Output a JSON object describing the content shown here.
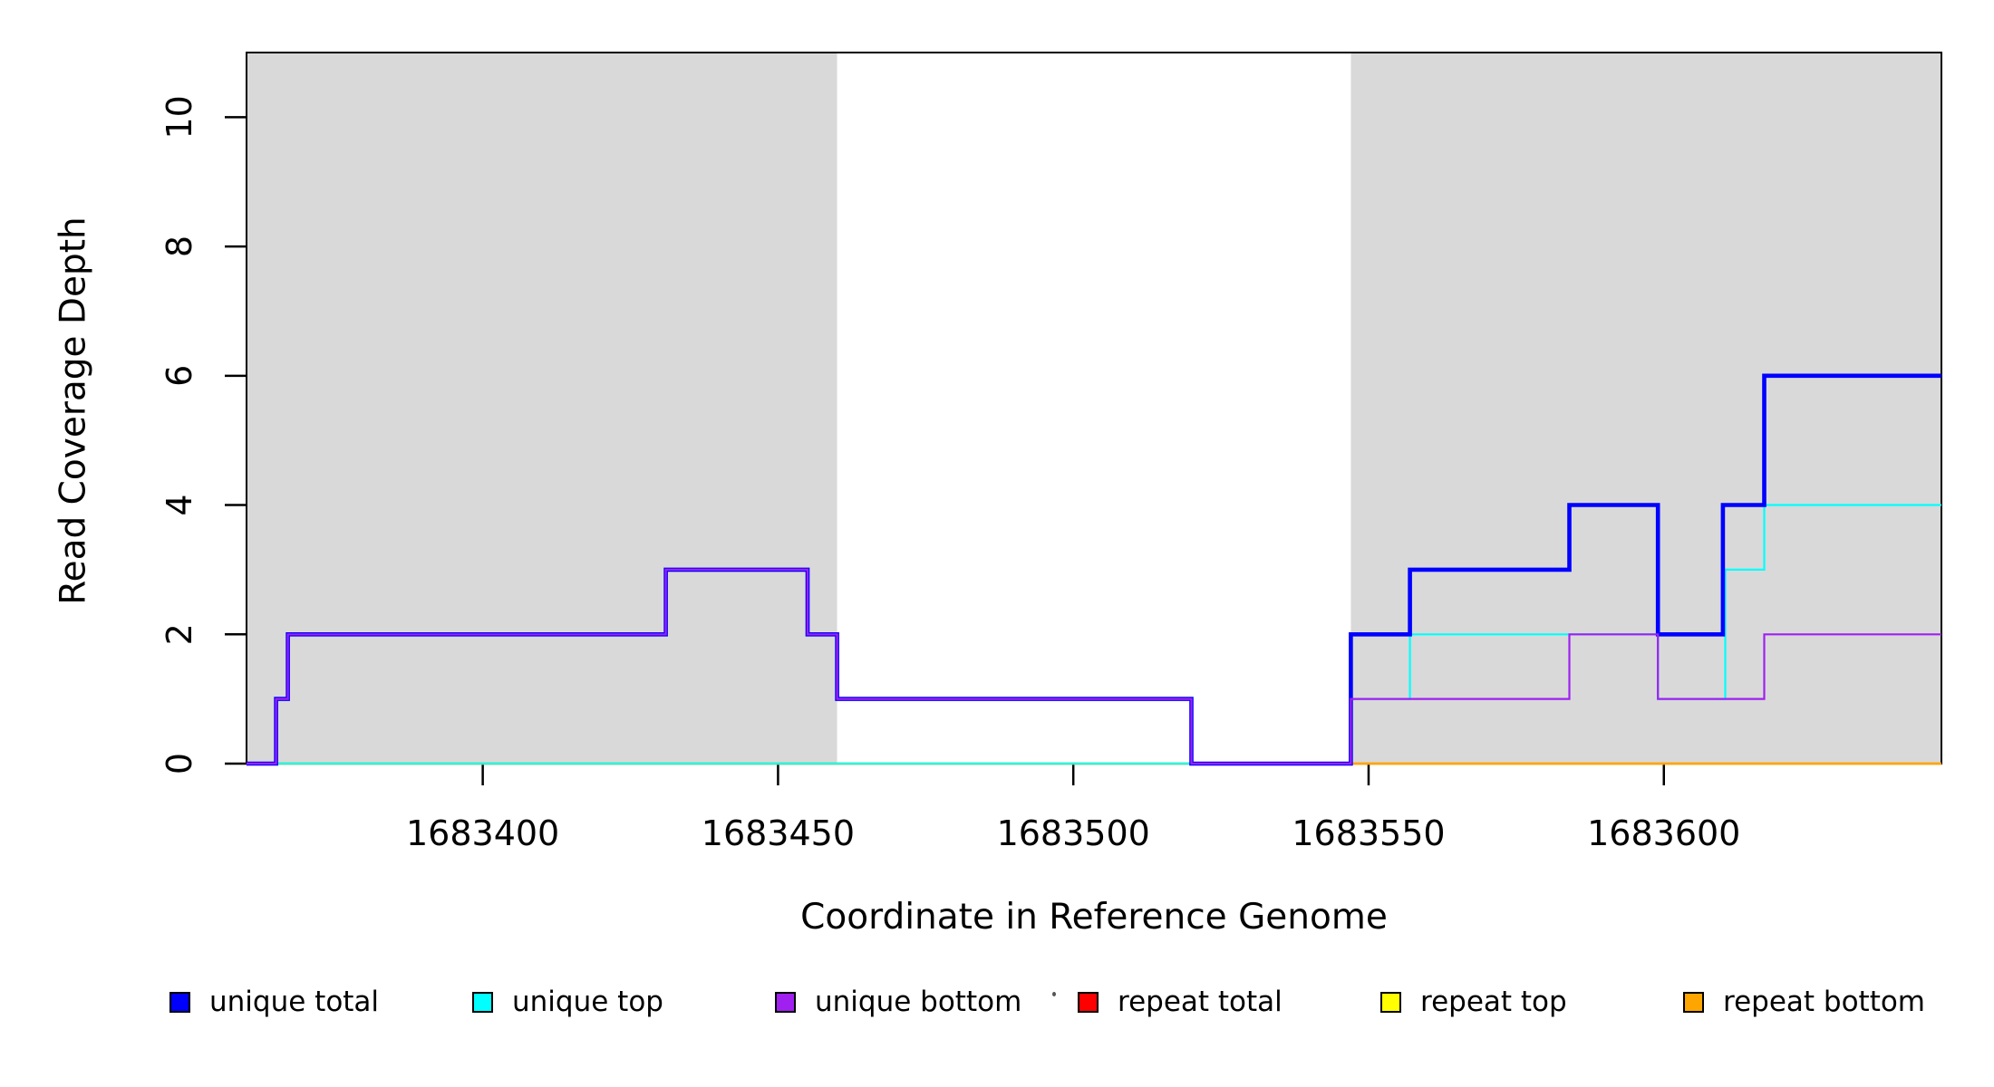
{
  "chart_data": {
    "type": "line",
    "subtype": "step-coverage",
    "title": "",
    "xlabel": "Coordinate in Reference Genome",
    "ylabel": "Read Coverage Depth",
    "xlim": [
      1683360,
      1683647
    ],
    "ylim": [
      0,
      11
    ],
    "grid": false,
    "legend_position": "bottom",
    "x_ticks": [
      1683400,
      1683450,
      1683500,
      1683550,
      1683600
    ],
    "y_ticks": [
      0,
      2,
      4,
      6,
      8,
      10
    ],
    "shaded_regions": [
      {
        "x1": 1683360,
        "x2": 1683460,
        "color": "#D9D9D9"
      },
      {
        "x1": 1683547,
        "x2": 1683647,
        "color": "#D9D9D9"
      }
    ],
    "series": [
      {
        "name": "repeat total",
        "color": "#FF0000",
        "width": 2.2,
        "points": [
          [
            1683360,
            0
          ],
          [
            1683647,
            0
          ]
        ]
      },
      {
        "name": "repeat top",
        "color": "#FFFF00",
        "width": 2.2,
        "points": [
          [
            1683360,
            0
          ],
          [
            1683647,
            0
          ]
        ]
      },
      {
        "name": "repeat bottom",
        "color": "#FFA500",
        "width": 2.6,
        "points": [
          [
            1683360,
            0
          ],
          [
            1683647,
            0
          ]
        ]
      },
      {
        "name": "unique top",
        "color": "#00FFFF",
        "width": 2.2,
        "points": [
          [
            1683360,
            0
          ],
          [
            1683547,
            0
          ],
          [
            1683547,
            1
          ],
          [
            1683557,
            1
          ],
          [
            1683557,
            2
          ],
          [
            1683599,
            2
          ],
          [
            1683599,
            1
          ],
          [
            1683610.4,
            1
          ],
          [
            1683610.4,
            3
          ],
          [
            1683617,
            3
          ],
          [
            1683617,
            4
          ],
          [
            1683647,
            4
          ]
        ]
      },
      {
        "name": "unique total",
        "color": "#0000FF",
        "width": 4.6,
        "points": [
          [
            1683360,
            0
          ],
          [
            1683365,
            0
          ],
          [
            1683365,
            1
          ],
          [
            1683367,
            1
          ],
          [
            1683367,
            2
          ],
          [
            1683431,
            2
          ],
          [
            1683431,
            3
          ],
          [
            1683455,
            3
          ],
          [
            1683455,
            2
          ],
          [
            1683460,
            2
          ],
          [
            1683460,
            1
          ],
          [
            1683520,
            1
          ],
          [
            1683520,
            0
          ],
          [
            1683547,
            0
          ],
          [
            1683547,
            2
          ],
          [
            1683557,
            2
          ],
          [
            1683557,
            3
          ],
          [
            1683584,
            3
          ],
          [
            1683584,
            4
          ],
          [
            1683599,
            4
          ],
          [
            1683599,
            2
          ],
          [
            1683610,
            2
          ],
          [
            1683610,
            4
          ],
          [
            1683617,
            4
          ],
          [
            1683617,
            6
          ],
          [
            1683647,
            6
          ]
        ]
      },
      {
        "name": "unique bottom",
        "color": "#A020F0",
        "width": 2.2,
        "points": [
          [
            1683360,
            0
          ],
          [
            1683365,
            0
          ],
          [
            1683365,
            1
          ],
          [
            1683367,
            1
          ],
          [
            1683367,
            2
          ],
          [
            1683431,
            2
          ],
          [
            1683431,
            3
          ],
          [
            1683455,
            3
          ],
          [
            1683455,
            2
          ],
          [
            1683460,
            2
          ],
          [
            1683460,
            1
          ],
          [
            1683520,
            1
          ],
          [
            1683520,
            0
          ],
          [
            1683547,
            0
          ],
          [
            1683547,
            1
          ],
          [
            1683584,
            1
          ],
          [
            1683584,
            2
          ],
          [
            1683599,
            2
          ],
          [
            1683599,
            1
          ],
          [
            1683617,
            1
          ],
          [
            1683617,
            2
          ],
          [
            1683647,
            2
          ]
        ]
      }
    ],
    "legend": [
      {
        "label": "unique total",
        "color": "#0000FF"
      },
      {
        "label": "unique top",
        "color": "#00FFFF"
      },
      {
        "label": "unique bottom",
        "color": "#A020F0"
      },
      {
        "label": "repeat total",
        "color": "#FF0000"
      },
      {
        "label": "repeat top",
        "color": "#FFFF00"
      },
      {
        "label": "repeat bottom",
        "color": "#FFA500"
      }
    ],
    "axis_color": "#000000",
    "background_color": "#FFFFFF"
  }
}
